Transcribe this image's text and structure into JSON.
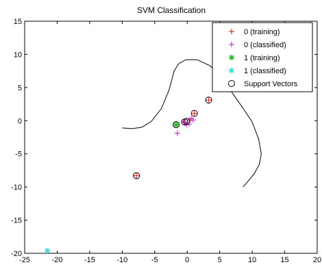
{
  "chart_data": {
    "type": "scatter",
    "title": "SVM Classification",
    "xlabel": "",
    "ylabel": "",
    "xlim": [
      -25,
      20
    ],
    "ylim": [
      -20,
      15
    ],
    "xticks": [
      -25,
      -20,
      -15,
      -10,
      -5,
      0,
      5,
      10,
      15,
      20
    ],
    "yticks": [
      -20,
      -15,
      -10,
      -5,
      0,
      5,
      10,
      15
    ],
    "grid": false,
    "legend_position": "top-right",
    "series": [
      {
        "name": "0 (training)",
        "marker": "plus",
        "color": "#e0312f",
        "points": [
          [
            -7.8,
            -8.3
          ],
          [
            3.3,
            3.1
          ],
          [
            1.1,
            1.1
          ],
          [
            0.4,
            0.1
          ],
          [
            -0.3,
            -0.3
          ]
        ]
      },
      {
        "name": "0 (classified)",
        "marker": "plus",
        "color": "#cc33cc",
        "points": [
          [
            -1.5,
            -1.9
          ],
          [
            0.3,
            -0.5
          ],
          [
            0.9,
            0.1
          ],
          [
            -0.1,
            -0.6
          ],
          [
            0.6,
            0.3
          ],
          [
            -0.4,
            -0.2
          ]
        ]
      },
      {
        "name": "1 (training)",
        "marker": "asterisk",
        "color": "#22bb22",
        "points": [
          [
            -1.7,
            -0.6
          ]
        ]
      },
      {
        "name": "1 (classified)",
        "marker": "asterisk",
        "color": "#33dddd",
        "points": [
          [
            -21.5,
            -19.6
          ]
        ]
      },
      {
        "name": "Support Vectors",
        "marker": "circle",
        "color": "#000000",
        "points": [
          [
            -7.8,
            -8.3
          ],
          [
            3.3,
            3.1
          ],
          [
            1.1,
            1.1
          ],
          [
            -1.7,
            -0.6
          ],
          [
            -0.4,
            -0.2
          ],
          [
            -0.1,
            -0.1
          ]
        ]
      }
    ],
    "boundary": [
      [
        -10,
        -1.1
      ],
      [
        -8.5,
        -1.2
      ],
      [
        -7,
        -1.0
      ],
      [
        -5.5,
        -0.1
      ],
      [
        -4,
        1.8
      ],
      [
        -2.8,
        4.6
      ],
      [
        -2,
        7.5
      ],
      [
        -1.3,
        8.6
      ],
      [
        -0.2,
        9.2
      ],
      [
        1.5,
        9.2
      ],
      [
        3.5,
        8.3
      ],
      [
        5.5,
        6.3
      ],
      [
        7,
        4.1
      ],
      [
        8.5,
        2.0
      ],
      [
        10,
        -0.2
      ],
      [
        11,
        -2.8
      ],
      [
        11.4,
        -5.0
      ],
      [
        11.1,
        -6.6
      ],
      [
        10.3,
        -8.0
      ],
      [
        9.3,
        -9.2
      ],
      [
        8.6,
        -10.0
      ]
    ],
    "series_colors": {
      "axis": "#000000",
      "boundary": "#000000"
    }
  }
}
